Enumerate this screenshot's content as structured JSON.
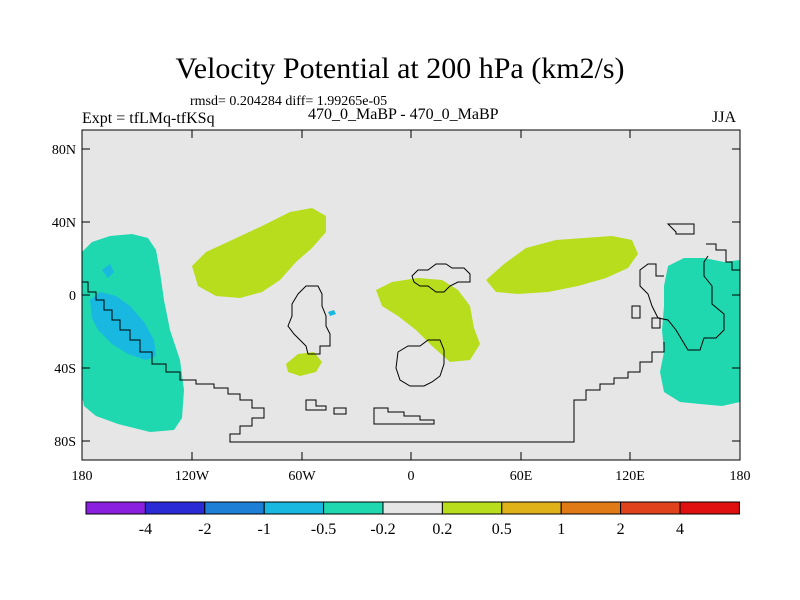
{
  "header": {
    "title": "Velocity Potential at 200 hPa (km2/s)",
    "stats": "rmsd= 0.204284 diff= 1.99265e-05",
    "experiment": "Expt = tfLMq-tfKSq",
    "runs": "470_0_MaBP - 470_0_MaBP",
    "season": "JJA"
  },
  "map": {
    "background_color": "#e6e6e6",
    "lat_labels": [
      "80N",
      "40N",
      "0",
      "40S",
      "80S"
    ],
    "lon_labels": [
      "180",
      "120W",
      "60W",
      "0",
      "60E",
      "120E",
      "180"
    ]
  },
  "colorbar": {
    "colors": [
      "#8b1fe0",
      "#2b2bd6",
      "#1e7fd6",
      "#18b8e0",
      "#1fd8b0",
      "#e6e6e6",
      "#b7dd1d",
      "#e0b21a",
      "#e07a17",
      "#e0431b",
      "#e01010"
    ],
    "labels": [
      "-4",
      "-2",
      "-1",
      "-0.5",
      "-0.2",
      "0.2",
      "0.5",
      "1",
      "2",
      "4"
    ]
  },
  "colors": {
    "positive_anomaly": "#b7dd1d",
    "negative_anomaly": "#1fd8b0",
    "strong_negative_anomaly": "#18b8e0"
  }
}
